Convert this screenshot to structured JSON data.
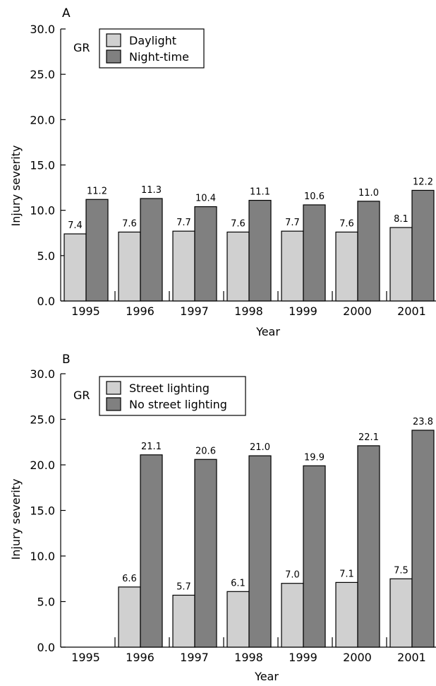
{
  "chart_data": [
    {
      "type": "bar",
      "panel_label": "A",
      "region_label": "GR",
      "categories": [
        "1995",
        "1996",
        "1997",
        "1998",
        "1999",
        "2000",
        "2001"
      ],
      "series": [
        {
          "name": "Daylight",
          "values": [
            7.4,
            7.6,
            7.7,
            7.6,
            7.7,
            7.6,
            8.1
          ],
          "labels": [
            "7.4",
            "7.6",
            "7.7",
            "7.6",
            "7.7",
            "7.6",
            "8.1"
          ],
          "color": "#d0d0d0"
        },
        {
          "name": "Night-time",
          "values": [
            11.2,
            11.3,
            10.4,
            11.1,
            10.6,
            11.0,
            12.2
          ],
          "labels": [
            "11.2",
            "11.3",
            "10.4",
            "11.1",
            "10.6",
            "11.0",
            "12.2"
          ],
          "color": "#808080"
        }
      ],
      "xlabel": "Year",
      "ylabel": "Injury severity",
      "ylim": [
        0,
        30
      ],
      "yticks": [
        "0.0",
        "5.0",
        "10.0",
        "15.0",
        "20.0",
        "25.0",
        "30.0"
      ],
      "grid": false,
      "legend_position": "top-left"
    },
    {
      "type": "bar",
      "panel_label": "B",
      "region_label": "GR",
      "categories": [
        "1995",
        "1996",
        "1997",
        "1998",
        "1999",
        "2000",
        "2001"
      ],
      "series": [
        {
          "name": "Street lighting",
          "values": [
            null,
            6.6,
            5.7,
            6.1,
            7.0,
            7.1,
            7.5
          ],
          "labels": [
            null,
            "6.6",
            "5.7",
            "6.1",
            "7.0",
            "7.1",
            "7.5"
          ],
          "color": "#d0d0d0"
        },
        {
          "name": "No street lighting",
          "values": [
            null,
            21.1,
            20.6,
            21.0,
            19.9,
            22.1,
            23.8
          ],
          "labels": [
            null,
            "21.1",
            "20.6",
            "21.0",
            "19.9",
            "22.1",
            "23.8"
          ],
          "color": "#808080"
        }
      ],
      "xlabel": "Year",
      "ylabel": "Injury severity",
      "ylim": [
        0,
        30
      ],
      "yticks": [
        "0.0",
        "5.0",
        "10.0",
        "15.0",
        "20.0",
        "25.0",
        "30.0"
      ],
      "grid": false,
      "legend_position": "top-left"
    }
  ]
}
